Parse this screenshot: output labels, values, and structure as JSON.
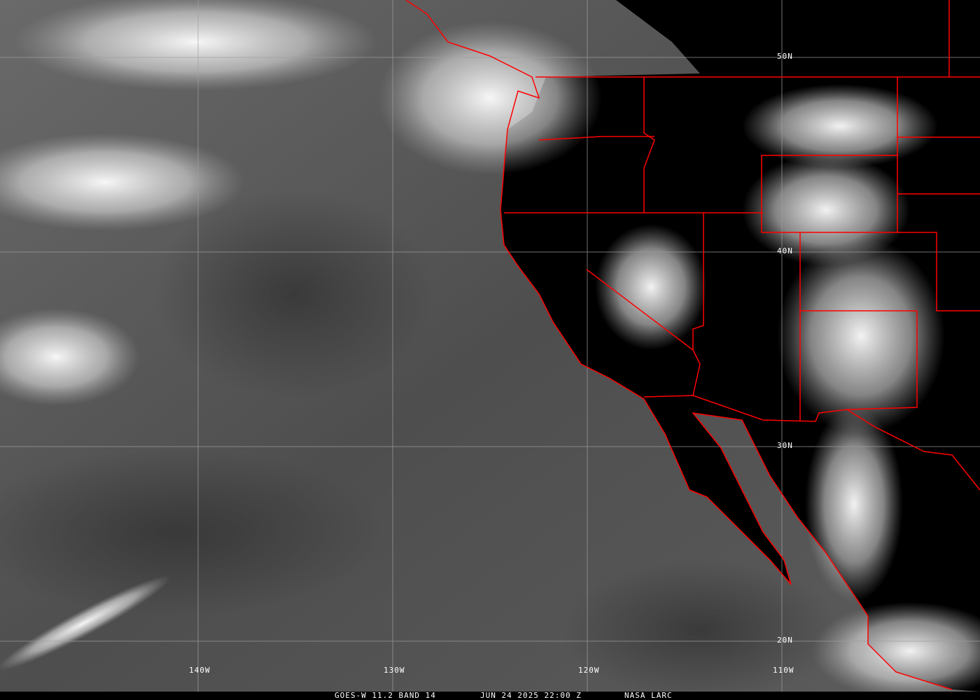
{
  "footer": {
    "satellite": "GOES-W 11.2 BAND 14",
    "datetime": "JUN 24 2025 22:00 Z",
    "source": "NASA LARC"
  },
  "grid": {
    "longitudes": [
      "140W",
      "130W",
      "120W",
      "110W"
    ],
    "latitudes": [
      "50N",
      "40N",
      "30N",
      "20N"
    ]
  },
  "colors": {
    "borders": "#ff0000",
    "grid": "#a0a0a0",
    "land": "#000000",
    "cloud": "#ffffff"
  }
}
